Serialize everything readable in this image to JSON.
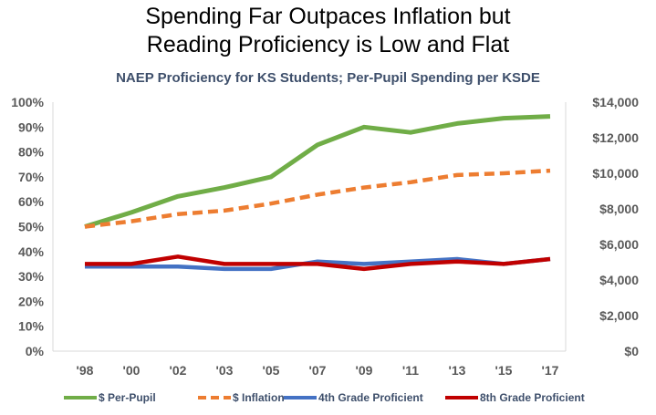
{
  "chart_data": {
    "type": "line",
    "title_lines": [
      "Spending Far Outpaces Inflation but",
      "Reading Proficiency is Low and Flat"
    ],
    "subtitle": "NAEP Proficiency for KS Students; Per-Pupil Spending per KSDE",
    "categories": [
      "'98",
      "'00",
      "'02",
      "'03",
      "'05",
      "'07",
      "'09",
      "'11",
      "'13",
      "'15",
      "'17"
    ],
    "y_left": {
      "ticks": [
        "0%",
        "10%",
        "20%",
        "30%",
        "40%",
        "50%",
        "60%",
        "70%",
        "80%",
        "90%",
        "100%"
      ],
      "ylim": [
        0,
        100
      ]
    },
    "y_right": {
      "ticks": [
        "$0",
        "$2,000",
        "$4,000",
        "$6,000",
        "$8,000",
        "$10,000",
        "$12,000",
        "$14,000"
      ],
      "ylim": [
        0,
        14000
      ]
    },
    "grid": false,
    "legend_position": "bottom",
    "series": [
      {
        "name": "$ Per-Pupil",
        "axis": "right",
        "color": "#70ad47",
        "dash": "solid",
        "values": [
          7000,
          7800,
          8700,
          9200,
          9800,
          11600,
          12600,
          12300,
          12800,
          13100,
          13200
        ]
      },
      {
        "name": "$ Inflation",
        "axis": "right",
        "color": "#ed7d31",
        "dash": "dashed",
        "values": [
          7000,
          7300,
          7700,
          7900,
          8300,
          8800,
          9200,
          9500,
          9900,
          10000,
          10150
        ]
      },
      {
        "name": "4th Grade Proficient",
        "axis": "left",
        "color": "#4472c4",
        "dash": "solid",
        "values": [
          34,
          34,
          34,
          33,
          33,
          36,
          35,
          36,
          37,
          35,
          37
        ]
      },
      {
        "name": "8th Grade Proficient",
        "axis": "left",
        "color": "#c00000",
        "dash": "solid",
        "values": [
          35,
          35,
          38,
          35,
          35,
          35,
          33,
          35,
          36,
          35,
          37
        ]
      }
    ]
  }
}
